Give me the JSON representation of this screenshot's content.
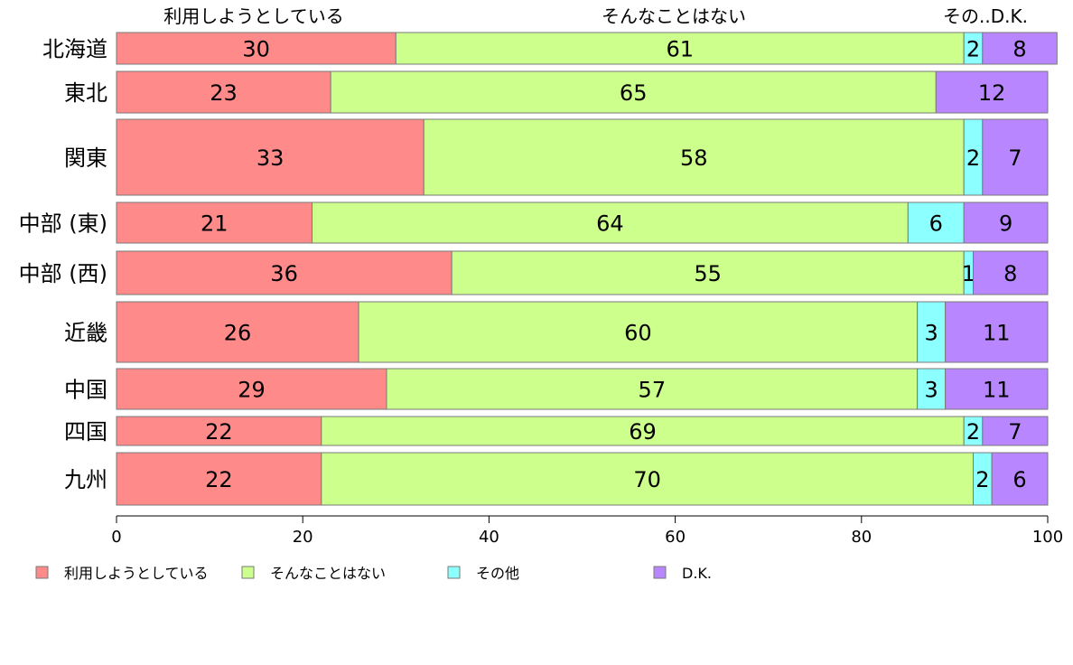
{
  "chart_data": {
    "type": "bar",
    "orientation": "horizontal",
    "stacked": true,
    "variable_width": true,
    "categories": [
      "北海道",
      "東北",
      "関東",
      "中部 (東)",
      "中部 (西)",
      "近畿",
      "中国",
      "四国",
      "九州"
    ],
    "series": [
      {
        "name": "利用しようとしている",
        "color": "#ff8a8a",
        "values": [
          30,
          23,
          33,
          21,
          36,
          26,
          29,
          22,
          22
        ]
      },
      {
        "name": "そんなことはない",
        "color": "#ccff8c",
        "values": [
          61,
          65,
          58,
          64,
          55,
          60,
          57,
          69,
          70
        ]
      },
      {
        "name": "その他",
        "color": "#8cffff",
        "values": [
          2,
          0,
          2,
          6,
          1,
          3,
          3,
          2,
          2
        ]
      },
      {
        "name": "D.K.",
        "color": "#b886ff",
        "values": [
          8,
          12,
          7,
          9,
          8,
          11,
          11,
          7,
          6
        ]
      }
    ],
    "top_labels": [
      "利用しようとしている",
      "そんなことはない",
      "その..D.K."
    ],
    "xlim": [
      0,
      100
    ],
    "xticks": [
      0,
      20,
      40,
      60,
      80,
      100
    ],
    "legend": "bottom",
    "grid": false
  }
}
